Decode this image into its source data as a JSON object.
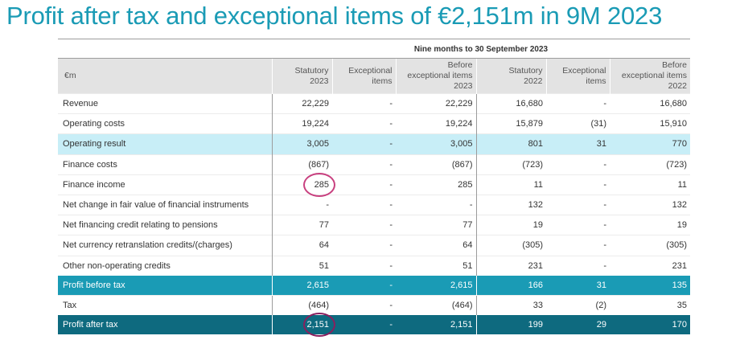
{
  "title": "Profit after tax and exceptional items of €2,151m in 9M 2023",
  "period_header": "Nine months to 30 September 2023",
  "columns": [
    [
      "€m"
    ],
    [
      "Statutory",
      "2023"
    ],
    [
      "Exceptional",
      "items"
    ],
    [
      "Before",
      "exceptional items",
      "2023"
    ],
    [
      "Statutory",
      "2022"
    ],
    [
      "Exceptional",
      "items"
    ],
    [
      "Before",
      "exceptional items",
      "2022"
    ]
  ],
  "rows": [
    {
      "label": "Revenue",
      "values": [
        "22,229",
        "-",
        "22,229",
        "16,680",
        "-",
        "16,680"
      ],
      "style": "normal"
    },
    {
      "label": "Operating costs",
      "values": [
        "19,224",
        "-",
        "19,224",
        "15,879",
        "(31)",
        "15,910"
      ],
      "style": "normal"
    },
    {
      "label": "Operating result",
      "values": [
        "3,005",
        "-",
        "3,005",
        "801",
        "31",
        "770"
      ],
      "style": "highlight"
    },
    {
      "label": "Finance costs",
      "values": [
        "(867)",
        "-",
        "(867)",
        "(723)",
        "-",
        "(723)"
      ],
      "style": "normal"
    },
    {
      "label": "Finance income",
      "values": [
        "285",
        "-",
        "285",
        "11",
        "-",
        "11"
      ],
      "style": "normal"
    },
    {
      "label": "Net change in fair value of financial instruments",
      "values": [
        "-",
        "-",
        "-",
        "132",
        "-",
        "132"
      ],
      "style": "normal"
    },
    {
      "label": "Net financing credit relating to pensions",
      "values": [
        "77",
        "-",
        "77",
        "19",
        "-",
        "19"
      ],
      "style": "normal"
    },
    {
      "label": "Net currency retranslation credits/(charges)",
      "values": [
        "64",
        "-",
        "64",
        "(305)",
        "-",
        "(305)"
      ],
      "style": "normal"
    },
    {
      "label": "Other non-operating credits",
      "values": [
        "51",
        "-",
        "51",
        "231",
        "-",
        "231"
      ],
      "style": "normal"
    },
    {
      "label": "Profit before tax",
      "values": [
        "2,615",
        "-",
        "2,615",
        "166",
        "31",
        "135"
      ],
      "style": "pbt"
    },
    {
      "label": "Tax",
      "values": [
        "(464)",
        "-",
        "(464)",
        "33",
        "(2)",
        "35"
      ],
      "style": "normal"
    },
    {
      "label": "Profit after tax",
      "values": [
        "2,151",
        "-",
        "2,151",
        "199",
        "29",
        "170"
      ],
      "style": "pat"
    }
  ],
  "annotations": [
    {
      "target": "Finance income / Statutory 2023",
      "color": "#c8407f"
    },
    {
      "target": "Profit after tax / Statutory 2023",
      "color": "#8a1f5e"
    }
  ]
}
